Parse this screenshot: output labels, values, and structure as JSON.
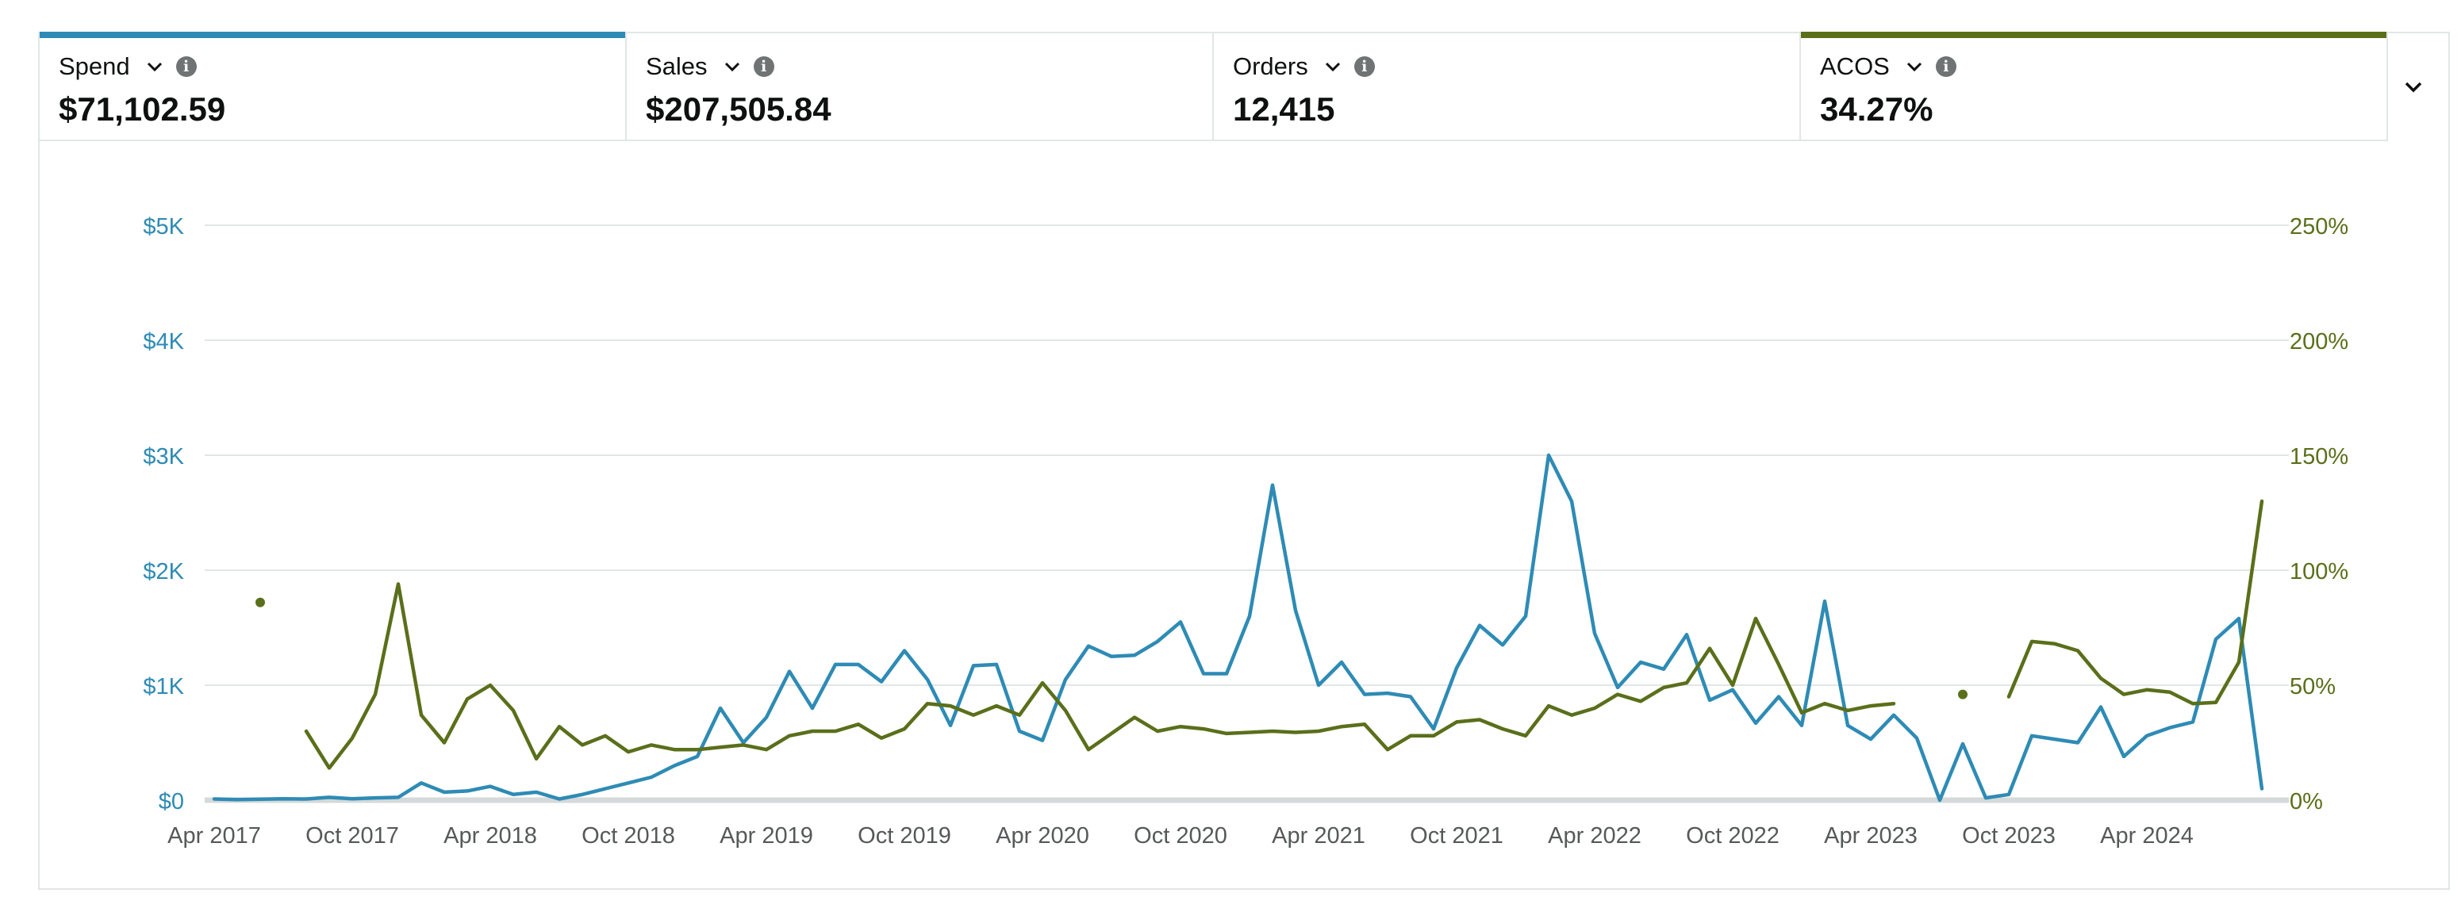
{
  "metrics": [
    {
      "label": "Spend",
      "value": "$71,102.59",
      "accent": "#2e8bb5",
      "selected": true
    },
    {
      "label": "Sales",
      "value": "$207,505.84",
      "accent": "",
      "selected": false
    },
    {
      "label": "Orders",
      "value": "12,415",
      "accent": "",
      "selected": false
    },
    {
      "label": "ACOS",
      "value": "34.27%",
      "accent": "#5a6f1a",
      "selected": true
    }
  ],
  "icons": {
    "metric_dropdown": "chevron-down-icon",
    "metric_info": "info-icon",
    "expand": "chevron-down-icon"
  },
  "chart_data": {
    "type": "line",
    "x_start": "Apr 2017",
    "x_interval": "month",
    "x_tick_labels": [
      "Apr 2017",
      "Oct 2017",
      "Apr 2018",
      "Oct 2018",
      "Apr 2019",
      "Oct 2019",
      "Apr 2020",
      "Oct 2020",
      "Apr 2021",
      "Oct 2021",
      "Apr 2022",
      "Oct 2022",
      "Apr 2023",
      "Oct 2023",
      "Apr 2024"
    ],
    "y_left": {
      "ticks": [
        "$0",
        "$1K",
        "$2K",
        "$3K",
        "$4K",
        "$5K"
      ],
      "ylim": [
        0,
        5000
      ],
      "color": "#2e8bb5"
    },
    "y_right": {
      "ticks": [
        "0%",
        "50%",
        "100%",
        "150%",
        "200%",
        "250%"
      ],
      "ylim": [
        0,
        250
      ],
      "color": "#5a6f1a"
    },
    "grid": true,
    "series": [
      {
        "name": "Spend",
        "axis": "left",
        "color": "#2e8bb5",
        "values": [
          10,
          5,
          8,
          12,
          10,
          25,
          12,
          20,
          25,
          150,
          70,
          80,
          120,
          50,
          70,
          10,
          50,
          100,
          150,
          200,
          300,
          380,
          800,
          500,
          720,
          1120,
          800,
          1180,
          1180,
          1030,
          1300,
          1050,
          650,
          1170,
          1180,
          600,
          520,
          1050,
          1340,
          1250,
          1260,
          1380,
          1550,
          1100,
          1100,
          1600,
          2740,
          1650,
          1000,
          1200,
          920,
          930,
          900,
          620,
          1150,
          1520,
          1350,
          1600,
          3000,
          2600,
          1450,
          980,
          1200,
          1140,
          1440,
          870,
          960,
          670,
          900,
          650,
          1730,
          650,
          530,
          740,
          540,
          0,
          490,
          20,
          50,
          560,
          530,
          500,
          810,
          380,
          560,
          630,
          680,
          1400,
          1580,
          100
        ]
      },
      {
        "name": "ACOS",
        "axis": "right",
        "color": "#5a6f1a",
        "values": [
          null,
          null,
          86,
          null,
          30,
          14,
          27,
          46,
          94,
          37,
          25,
          44,
          50,
          39,
          18,
          32,
          24,
          28,
          21,
          24,
          22,
          22,
          23,
          24,
          22,
          28,
          30,
          30,
          33,
          27,
          31,
          42,
          41,
          37,
          41,
          37,
          51,
          39,
          22,
          29,
          36,
          30,
          32,
          31,
          29,
          29.5,
          30,
          29.5,
          30,
          32,
          33,
          22,
          28,
          28,
          34,
          35,
          31,
          28,
          41,
          37,
          40,
          46,
          43,
          49,
          51,
          66,
          50,
          79,
          59,
          38,
          42,
          39,
          41,
          42,
          null,
          null,
          46,
          null,
          45,
          69,
          68,
          65,
          53,
          46,
          48,
          47,
          42,
          42.5,
          60,
          130
        ]
      }
    ]
  }
}
